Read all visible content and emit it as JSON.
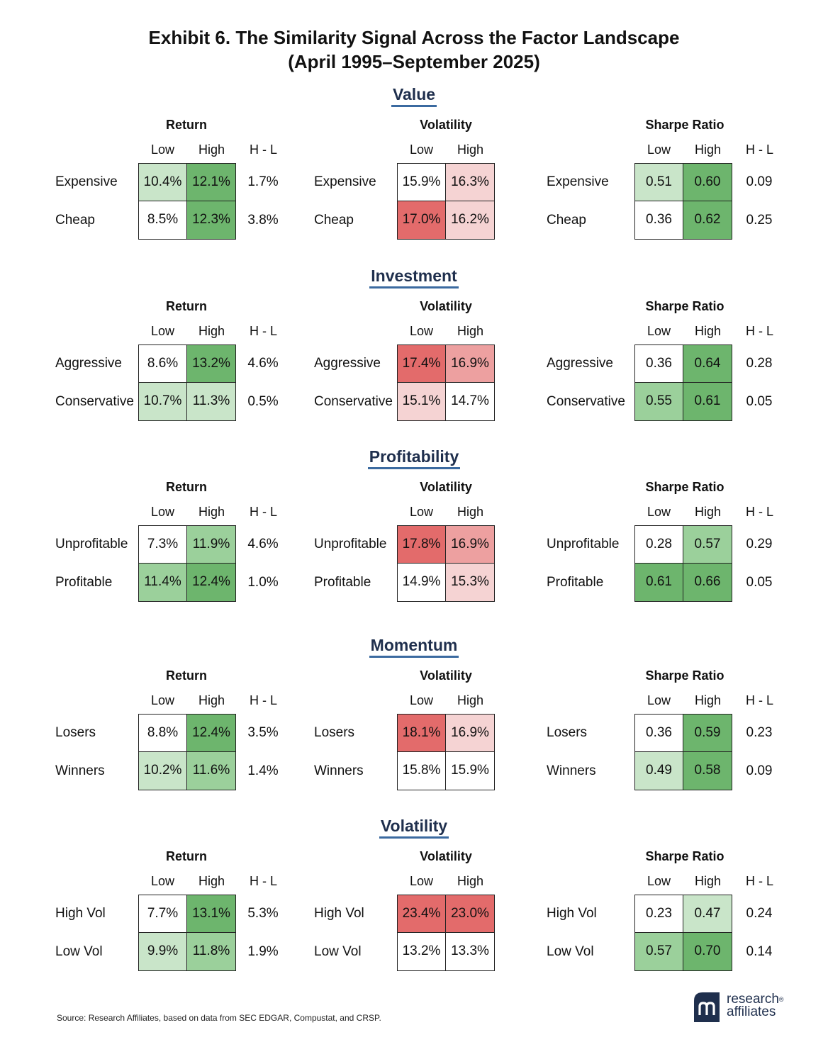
{
  "title_line1": "Exhibit 6. The Similarity Signal Across the Factor Landscape",
  "title_line2": "(April 1995–September 2025)",
  "source": "Source: Research Affiliates, based on data from SEC EDGAR, Compustat, and CRSP.",
  "logo": {
    "line1": "research",
    "line2": "affiliates",
    "registered": "®",
    "icon": "research-affiliates-logo-icon"
  },
  "colors": {
    "green_light": "#c9e5c9",
    "green_mid": "#9bd09b",
    "green_dark": "#6db56d",
    "red_light": "#f5d3d3",
    "red_mid": "#eda0a0",
    "red_dark": "#e36b6b",
    "title_blue": "#1f2f4d",
    "underline_blue": "#3b6aa0"
  },
  "chart_data": [
    {
      "type": "heatmap",
      "factor": "Value",
      "rows": [
        "Expensive",
        "Cheap"
      ],
      "columns": [
        "Low",
        "High",
        "H - L"
      ],
      "panels": [
        {
          "title": "Return",
          "cells": [
            [
              "10.4%",
              "12.1%",
              "1.7%"
            ],
            [
              "8.5%",
              "12.3%",
              "3.8%"
            ]
          ],
          "shades": [
            [
              "g1",
              "g3"
            ],
            [
              "w",
              "g3"
            ]
          ]
        },
        {
          "title": "Volatility",
          "cells": [
            [
              "15.9%",
              "16.3%"
            ],
            [
              "17.0%",
              "16.2%"
            ]
          ],
          "shades": [
            [
              "w",
              "r1"
            ],
            [
              "r3",
              "r1"
            ]
          ]
        },
        {
          "title": "Sharpe Ratio",
          "cells": [
            [
              "0.51",
              "0.60",
              "0.09"
            ],
            [
              "0.36",
              "0.62",
              "0.25"
            ]
          ],
          "shades": [
            [
              "g1",
              "g3"
            ],
            [
              "w",
              "g3"
            ]
          ]
        }
      ]
    },
    {
      "type": "heatmap",
      "factor": "Investment",
      "rows": [
        "Aggressive",
        "Conservative"
      ],
      "columns": [
        "Low",
        "High",
        "H - L"
      ],
      "panels": [
        {
          "title": "Return",
          "cells": [
            [
              "8.6%",
              "13.2%",
              "4.6%"
            ],
            [
              "10.7%",
              "11.3%",
              "0.5%"
            ]
          ],
          "shades": [
            [
              "w",
              "g3"
            ],
            [
              "g1",
              "g1"
            ]
          ]
        },
        {
          "title": "Volatility",
          "cells": [
            [
              "17.4%",
              "16.9%"
            ],
            [
              "15.1%",
              "14.7%"
            ]
          ],
          "shades": [
            [
              "r3",
              "r2"
            ],
            [
              "r0",
              "w"
            ]
          ]
        },
        {
          "title": "Sharpe Ratio",
          "cells": [
            [
              "0.36",
              "0.64",
              "0.28"
            ],
            [
              "0.55",
              "0.61",
              "0.05"
            ]
          ],
          "shades": [
            [
              "w",
              "g3"
            ],
            [
              "g2",
              "g3"
            ]
          ]
        }
      ]
    },
    {
      "type": "heatmap",
      "factor": "Profitability",
      "rows": [
        "Unprofitable",
        "Profitable"
      ],
      "columns": [
        "Low",
        "High",
        "H - L"
      ],
      "panels": [
        {
          "title": "Return",
          "cells": [
            [
              "7.3%",
              "11.9%",
              "4.6%"
            ],
            [
              "11.4%",
              "12.4%",
              "1.0%"
            ]
          ],
          "shades": [
            [
              "w",
              "g2"
            ],
            [
              "g2",
              "g3"
            ]
          ]
        },
        {
          "title": "Volatility",
          "cells": [
            [
              "17.8%",
              "16.9%"
            ],
            [
              "14.9%",
              "15.3%"
            ]
          ],
          "shades": [
            [
              "r3",
              "r2"
            ],
            [
              "w",
              "r0"
            ]
          ]
        },
        {
          "title": "Sharpe Ratio",
          "cells": [
            [
              "0.28",
              "0.57",
              "0.29"
            ],
            [
              "0.61",
              "0.66",
              "0.05"
            ]
          ],
          "shades": [
            [
              "w",
              "g2"
            ],
            [
              "g3",
              "g3"
            ]
          ]
        }
      ]
    },
    {
      "type": "heatmap",
      "factor": "Momentum",
      "rows": [
        "Losers",
        "Winners"
      ],
      "columns": [
        "Low",
        "High",
        "H - L"
      ],
      "panels": [
        {
          "title": "Return",
          "cells": [
            [
              "8.8%",
              "12.4%",
              "3.5%"
            ],
            [
              "10.2%",
              "11.6%",
              "1.4%"
            ]
          ],
          "shades": [
            [
              "w",
              "g3"
            ],
            [
              "g1",
              "g2"
            ]
          ]
        },
        {
          "title": "Volatility",
          "cells": [
            [
              "18.1%",
              "16.9%"
            ],
            [
              "15.8%",
              "15.9%"
            ]
          ],
          "shades": [
            [
              "r3",
              "r1"
            ],
            [
              "w",
              "w"
            ]
          ]
        },
        {
          "title": "Sharpe Ratio",
          "cells": [
            [
              "0.36",
              "0.59",
              "0.23"
            ],
            [
              "0.49",
              "0.58",
              "0.09"
            ]
          ],
          "shades": [
            [
              "w",
              "g3"
            ],
            [
              "g1",
              "g3"
            ]
          ]
        }
      ]
    },
    {
      "type": "heatmap",
      "factor": "Volatility",
      "rows": [
        "High Vol",
        "Low Vol"
      ],
      "columns": [
        "Low",
        "High",
        "H - L"
      ],
      "panels": [
        {
          "title": "Return",
          "cells": [
            [
              "7.7%",
              "13.1%",
              "5.3%"
            ],
            [
              "9.9%",
              "11.8%",
              "1.9%"
            ]
          ],
          "shades": [
            [
              "w",
              "g3"
            ],
            [
              "g1",
              "g2"
            ]
          ]
        },
        {
          "title": "Volatility",
          "cells": [
            [
              "23.4%",
              "23.0%"
            ],
            [
              "13.2%",
              "13.3%"
            ]
          ],
          "shades": [
            [
              "r3",
              "r3"
            ],
            [
              "w",
              "w"
            ]
          ]
        },
        {
          "title": "Sharpe Ratio",
          "cells": [
            [
              "0.23",
              "0.47",
              "0.24"
            ],
            [
              "0.57",
              "0.70",
              "0.14"
            ]
          ],
          "shades": [
            [
              "w",
              "g1"
            ],
            [
              "g2",
              "g3"
            ]
          ]
        }
      ]
    }
  ]
}
